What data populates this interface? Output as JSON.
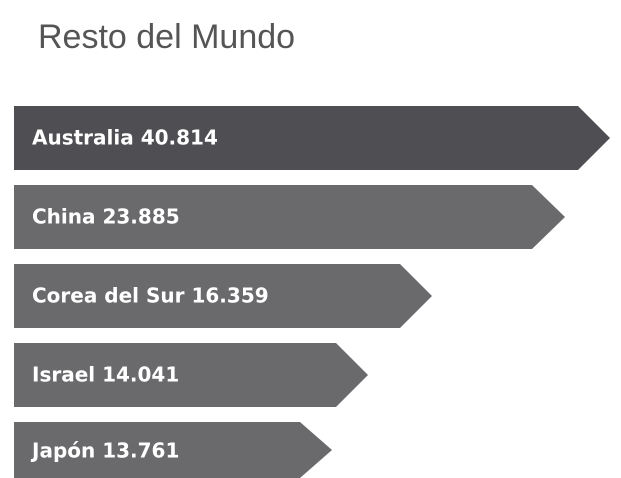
{
  "header": {
    "title": "Resto del Mundo"
  },
  "items": [
    {
      "label": "Australia 40.814"
    },
    {
      "label": "China 23.885"
    },
    {
      "label": "Corea del Sur 16.359"
    },
    {
      "label": "Israel 14.041"
    },
    {
      "label": "Japón 13.761"
    }
  ]
}
